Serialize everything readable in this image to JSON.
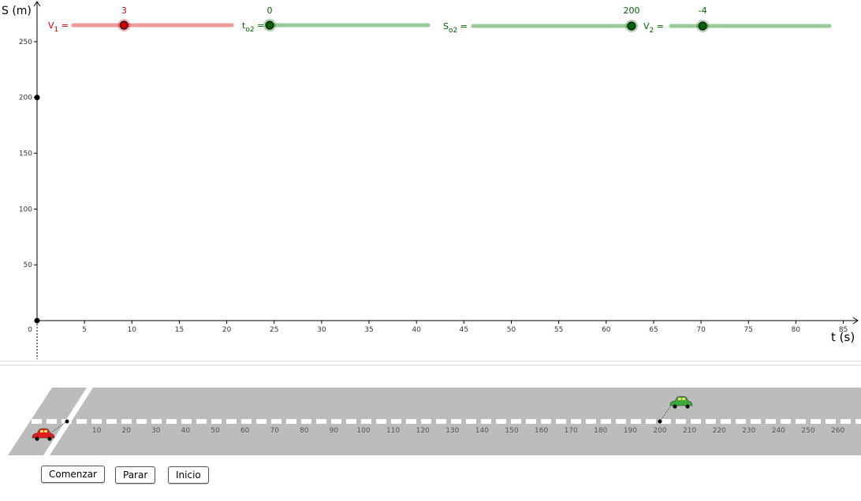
{
  "colors": {
    "v1": "#cc0000",
    "v1_track": "#f09999",
    "green": "#006400",
    "green_track": "#99cc99",
    "road": "#bcbcbc",
    "axis": "#000000"
  },
  "graph": {
    "y_axis_label": "S (m)",
    "x_axis_label": "t (s)",
    "origin_label": "0",
    "x_ticks": [
      "5",
      "10",
      "15",
      "20",
      "25",
      "30",
      "35",
      "40",
      "45",
      "50",
      "55",
      "60",
      "65",
      "70",
      "75",
      "80",
      "85"
    ],
    "y_ticks": [
      "50",
      "100",
      "150",
      "200",
      "250"
    ],
    "points": [
      {
        "t": 0,
        "s": 200
      },
      {
        "t": 0,
        "s": 0
      }
    ]
  },
  "sliders": {
    "v1": {
      "label": "V",
      "sub": "1",
      "eq": " =",
      "value": "3",
      "num": 3,
      "min": -5,
      "max": 20
    },
    "to2": {
      "label": "t",
      "sub": "o2",
      "eq": " =",
      "value": "0",
      "num": 0,
      "min": 0,
      "max": 40
    },
    "so2": {
      "label": "S",
      "sub": "o2",
      "eq": " =",
      "value": "200",
      "num": 200,
      "min": 0,
      "max": 200
    },
    "v2": {
      "label": "V",
      "sub": "2",
      "eq": " =",
      "value": "-4",
      "num": -4,
      "min": -10,
      "max": 20
    }
  },
  "road": {
    "ticks": [
      "10",
      "20",
      "30",
      "40",
      "50",
      "60",
      "70",
      "80",
      "90",
      "100",
      "110",
      "120",
      "130",
      "140",
      "150",
      "160",
      "170",
      "180",
      "190",
      "200",
      "210",
      "220",
      "230",
      "240",
      "250",
      "260"
    ],
    "car1_position": 0,
    "car2_position": 200,
    "car1_icon": "red-car-icon",
    "car2_icon": "green-car-icon"
  },
  "buttons": {
    "start": "Comenzar",
    "stop": "Parar",
    "reset": "Inicio"
  }
}
